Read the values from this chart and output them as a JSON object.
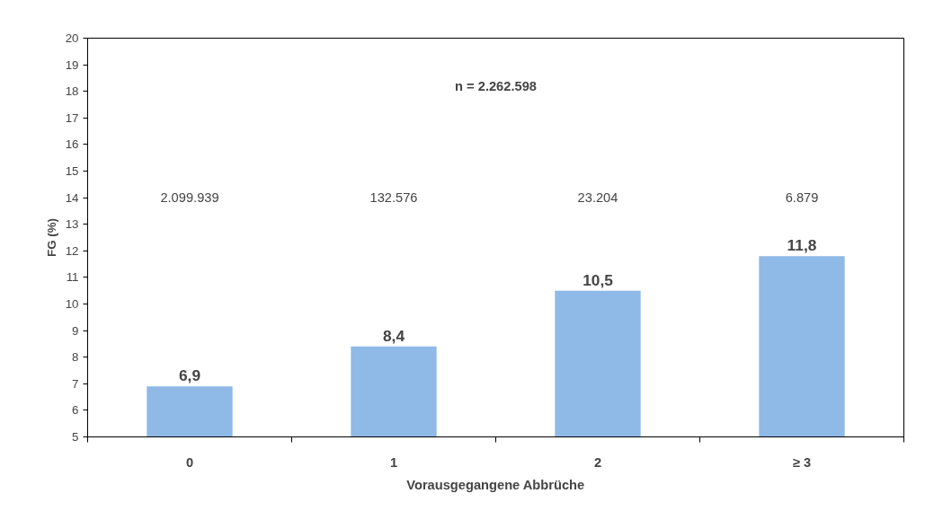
{
  "chart_data": {
    "type": "bar",
    "xlabel": "Vorausgegangene Abbrüche",
    "ylabel": "FG (%)",
    "categories": [
      "0",
      "1",
      "2",
      "≥ 3"
    ],
    "values": [
      6.9,
      8.4,
      10.5,
      11.8
    ],
    "value_labels": [
      "6,9",
      "8,4",
      "10,5",
      "11,8"
    ],
    "color": "#8fb9e6",
    "ylim": [
      5,
      20
    ],
    "yticks": [
      5,
      6,
      7,
      8,
      9,
      10,
      11,
      12,
      13,
      14,
      15,
      16,
      17,
      18,
      19,
      20
    ],
    "grid": false,
    "annotations": [
      "n = 2.262.598",
      "2.099.939",
      "132.576",
      "23.204",
      "6.879"
    ]
  }
}
